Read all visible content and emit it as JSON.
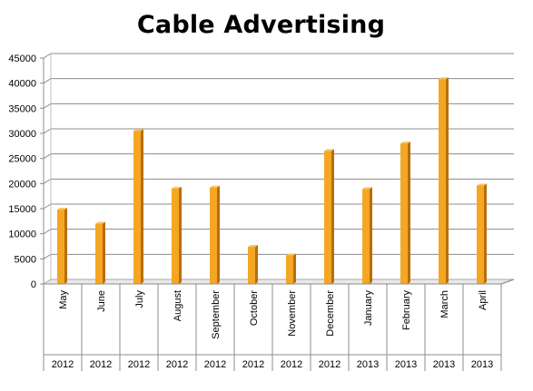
{
  "chart_data": {
    "type": "bar",
    "title": "Cable Advertising",
    "categories": [
      "May",
      "June",
      "July",
      "August",
      "September",
      "October",
      "November",
      "December",
      "January",
      "February",
      "March",
      "April"
    ],
    "years": [
      "2012",
      "2012",
      "2012",
      "2012",
      "2012",
      "2012",
      "2012",
      "2012",
      "2013",
      "2013",
      "2013",
      "2013"
    ],
    "values": [
      14800,
      12000,
      30500,
      19000,
      19200,
      7400,
      5700,
      26500,
      18900,
      28000,
      40800,
      19600
    ],
    "ylim": [
      0,
      45000
    ],
    "yticks": [
      "0",
      "5000",
      "10000",
      "15000",
      "20000",
      "25000",
      "30000",
      "35000",
      "40000",
      "45000"
    ],
    "xlabel": "",
    "ylabel": "",
    "grid": true,
    "legend": "none",
    "bar_color": "#F5A623",
    "bar_side_color": "#B86E0C",
    "bar_top_color": "#F9C463"
  }
}
